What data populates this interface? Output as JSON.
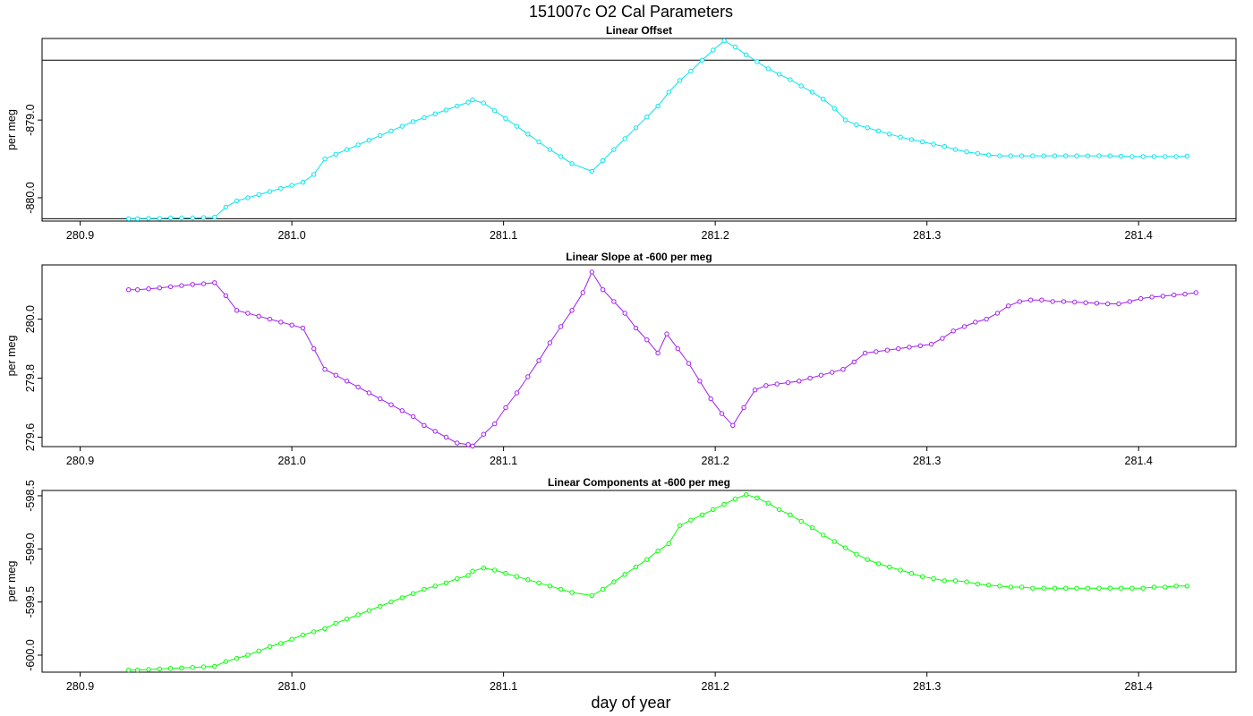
{
  "title": "151007c   O2 Cal Parameters",
  "xlabel": "day of year",
  "chart_data": [
    {
      "type": "line",
      "title": "Linear Offset",
      "ylabel": "per meg",
      "xlim": [
        280.882,
        281.446
      ],
      "ylim": [
        -880.3,
        -877.95
      ],
      "xticks": [
        280.9,
        281.0,
        281.1,
        281.2,
        281.3,
        281.4
      ],
      "yticks": [
        -879.0,
        -880.0
      ],
      "hlines": [
        -878.23,
        -880.27
      ],
      "color": "#00e5ee",
      "x": [
        280.9229,
        280.9271,
        280.9323,
        280.9375,
        280.9427,
        280.9479,
        280.9531,
        280.9583,
        280.9635,
        280.9688,
        280.974,
        280.9792,
        280.9844,
        280.9896,
        280.9948,
        281.0,
        281.0052,
        281.0104,
        281.0156,
        281.0208,
        281.026,
        281.0313,
        281.0365,
        281.0417,
        281.0469,
        281.0521,
        281.0573,
        281.0625,
        281.0677,
        281.0729,
        281.0781,
        281.0833,
        281.0854,
        281.0906,
        281.0958,
        281.101,
        281.1063,
        281.1115,
        281.1167,
        281.1219,
        281.1271,
        281.1323,
        281.1417,
        281.1469,
        281.1521,
        281.1573,
        281.1625,
        281.1677,
        281.1729,
        281.1781,
        281.1833,
        281.1885,
        281.1938,
        281.199,
        281.2042,
        281.2094,
        281.2146,
        281.2198,
        281.225,
        281.2302,
        281.2354,
        281.2406,
        281.2458,
        281.251,
        281.2563,
        281.2615,
        281.2667,
        281.2719,
        281.2771,
        281.2823,
        281.2875,
        281.2927,
        281.2979,
        281.3031,
        281.3083,
        281.3135,
        281.3188,
        281.324,
        281.3292,
        281.3344,
        281.3396,
        281.3448,
        281.35,
        281.3552,
        281.3604,
        281.3656,
        281.3708,
        281.376,
        281.3813,
        281.3865,
        281.3917,
        281.3969,
        281.4021,
        281.4073,
        281.4125,
        281.4177,
        281.4229
      ],
      "y": [
        -880.27,
        -880.27,
        -880.265,
        -880.265,
        -880.26,
        -880.26,
        -880.26,
        -880.255,
        -880.25,
        -880.12,
        -880.04,
        -880.0,
        -879.96,
        -879.92,
        -879.88,
        -879.84,
        -879.8,
        -879.7,
        -879.5,
        -879.44,
        -879.38,
        -879.32,
        -879.26,
        -879.2,
        -879.14,
        -879.08,
        -879.02,
        -878.97,
        -878.92,
        -878.87,
        -878.82,
        -878.77,
        -878.74,
        -878.78,
        -878.88,
        -878.98,
        -879.08,
        -879.18,
        -879.28,
        -879.38,
        -879.47,
        -879.56,
        -879.66,
        -879.52,
        -879.38,
        -879.24,
        -879.1,
        -878.96,
        -878.82,
        -878.64,
        -878.49,
        -878.37,
        -878.23,
        -878.1,
        -877.98,
        -878.06,
        -878.16,
        -878.25,
        -878.34,
        -878.41,
        -878.48,
        -878.56,
        -878.64,
        -878.73,
        -878.85,
        -879.0,
        -879.06,
        -879.1,
        -879.14,
        -879.18,
        -879.22,
        -879.25,
        -879.28,
        -879.31,
        -879.34,
        -879.38,
        -879.41,
        -879.43,
        -879.45,
        -879.46,
        -879.46,
        -879.46,
        -879.46,
        -879.46,
        -879.46,
        -879.46,
        -879.46,
        -879.46,
        -879.46,
        -879.46,
        -879.465,
        -879.47,
        -879.47,
        -879.47,
        -879.47,
        -879.47,
        -879.465
      ]
    },
    {
      "type": "line",
      "title": "Linear Slope at -600 per meg",
      "ylabel": "per meg",
      "xlim": [
        280.882,
        281.446
      ],
      "ylim": [
        279.568,
        280.184
      ],
      "xticks": [
        280.9,
        281.0,
        281.1,
        281.2,
        281.3,
        281.4
      ],
      "yticks": [
        279.6,
        279.8,
        280.0
      ],
      "hlines": [],
      "color": "#a020f0",
      "x": [
        280.9229,
        280.9271,
        280.9323,
        280.9375,
        280.9427,
        280.9479,
        280.9531,
        280.9583,
        280.9635,
        280.9688,
        280.974,
        280.9792,
        280.9844,
        280.9896,
        280.9948,
        281.0,
        281.0052,
        281.0104,
        281.0156,
        281.0208,
        281.026,
        281.0313,
        281.0365,
        281.0417,
        281.0469,
        281.0521,
        281.0573,
        281.0625,
        281.0677,
        281.0729,
        281.0781,
        281.0833,
        281.0854,
        281.0906,
        281.0958,
        281.101,
        281.1063,
        281.1115,
        281.1167,
        281.1219,
        281.1271,
        281.1323,
        281.1375,
        281.1417,
        281.1469,
        281.1521,
        281.1573,
        281.1625,
        281.1677,
        281.1729,
        281.1771,
        281.1823,
        281.1875,
        281.1927,
        281.1979,
        281.2031,
        281.2083,
        281.2135,
        281.2188,
        281.224,
        281.2292,
        281.2344,
        281.2396,
        281.2448,
        281.25,
        281.2552,
        281.2604,
        281.2656,
        281.2708,
        281.276,
        281.2813,
        281.2865,
        281.2917,
        281.2969,
        281.3021,
        281.3073,
        281.3125,
        281.3177,
        281.3229,
        281.3281,
        281.3333,
        281.3385,
        281.3438,
        281.349,
        281.3542,
        281.3594,
        281.3646,
        281.3698,
        281.375,
        281.3802,
        281.3854,
        281.3906,
        281.3958,
        281.401,
        281.4063,
        281.4115,
        281.4167,
        281.4219,
        281.4271
      ],
      "y": [
        280.1,
        280.1,
        280.103,
        280.106,
        280.11,
        280.114,
        280.118,
        280.12,
        280.124,
        280.08,
        280.03,
        280.02,
        280.01,
        280.0,
        279.99,
        279.98,
        279.97,
        279.9,
        279.83,
        279.81,
        279.79,
        279.77,
        279.75,
        279.73,
        279.71,
        279.69,
        279.67,
        279.64,
        279.62,
        279.6,
        279.58,
        279.575,
        279.57,
        279.61,
        279.645,
        279.7,
        279.75,
        279.805,
        279.86,
        279.92,
        279.975,
        280.03,
        280.09,
        280.16,
        280.1,
        280.06,
        280.02,
        279.97,
        279.93,
        279.885,
        279.95,
        279.9,
        279.85,
        279.79,
        279.73,
        279.68,
        279.64,
        279.7,
        279.76,
        279.775,
        279.78,
        279.785,
        279.79,
        279.8,
        279.81,
        279.82,
        279.83,
        279.855,
        279.885,
        279.89,
        279.895,
        279.9,
        279.905,
        279.91,
        279.915,
        279.935,
        279.96,
        279.975,
        279.99,
        280.0,
        280.02,
        280.045,
        280.06,
        280.065,
        280.065,
        280.06,
        280.06,
        280.058,
        280.056,
        280.054,
        280.052,
        280.052,
        280.06,
        280.07,
        280.075,
        280.078,
        280.082,
        280.085,
        280.09
      ]
    },
    {
      "type": "line",
      "title": "Linear Components at -600 per meg",
      "ylabel": "per meg",
      "xlim": [
        280.882,
        281.446
      ],
      "ylim": [
        -600.16,
        -598.45
      ],
      "xticks": [
        280.9,
        281.0,
        281.1,
        281.2,
        281.3,
        281.4
      ],
      "yticks": [
        -600.0,
        -599.5,
        -599.0,
        -598.5
      ],
      "hlines": [],
      "color": "#00ff00",
      "x": [
        280.9229,
        280.9271,
        280.9323,
        280.9375,
        280.9427,
        280.9479,
        280.9531,
        280.9583,
        280.9635,
        280.9688,
        280.974,
        280.9792,
        280.9844,
        280.9896,
        280.9948,
        281.0,
        281.0052,
        281.0104,
        281.0156,
        281.0208,
        281.026,
        281.0313,
        281.0365,
        281.0417,
        281.0469,
        281.0521,
        281.0573,
        281.0625,
        281.0677,
        281.0729,
        281.0781,
        281.0833,
        281.0854,
        281.0906,
        281.0958,
        281.101,
        281.1063,
        281.1115,
        281.1167,
        281.1219,
        281.1271,
        281.1323,
        281.1417,
        281.1469,
        281.1521,
        281.1573,
        281.1625,
        281.1677,
        281.1729,
        281.1781,
        281.1833,
        281.1885,
        281.1938,
        281.199,
        281.2042,
        281.2094,
        281.2146,
        281.2198,
        281.225,
        281.2302,
        281.2354,
        281.2406,
        281.2458,
        281.251,
        281.2563,
        281.2615,
        281.2667,
        281.2719,
        281.2771,
        281.2823,
        281.2875,
        281.2927,
        281.2979,
        281.3031,
        281.3083,
        281.3135,
        281.3188,
        281.324,
        281.3292,
        281.3344,
        281.3396,
        281.3448,
        281.35,
        281.3552,
        281.3604,
        281.3656,
        281.3708,
        281.376,
        281.3813,
        281.3865,
        281.3917,
        281.3969,
        281.4021,
        281.4073,
        281.4125,
        281.4177,
        281.4229
      ],
      "y": [
        -600.14,
        -600.14,
        -600.135,
        -600.13,
        -600.125,
        -600.12,
        -600.115,
        -600.11,
        -600.105,
        -600.06,
        -600.03,
        -600.0,
        -599.96,
        -599.92,
        -599.89,
        -599.85,
        -599.81,
        -599.78,
        -599.75,
        -599.7,
        -599.66,
        -599.62,
        -599.58,
        -599.54,
        -599.5,
        -599.46,
        -599.42,
        -599.38,
        -599.35,
        -599.32,
        -599.28,
        -599.25,
        -599.21,
        -599.18,
        -599.2,
        -599.23,
        -599.26,
        -599.29,
        -599.32,
        -599.35,
        -599.38,
        -599.41,
        -599.44,
        -599.38,
        -599.31,
        -599.24,
        -599.17,
        -599.1,
        -599.02,
        -598.95,
        -598.78,
        -598.73,
        -598.68,
        -598.63,
        -598.58,
        -598.53,
        -598.49,
        -598.52,
        -598.57,
        -598.63,
        -598.68,
        -598.74,
        -598.8,
        -598.87,
        -598.93,
        -598.99,
        -599.05,
        -599.1,
        -599.14,
        -599.17,
        -599.2,
        -599.23,
        -599.26,
        -599.28,
        -599.3,
        -599.3,
        -599.31,
        -599.33,
        -599.34,
        -599.35,
        -599.36,
        -599.36,
        -599.37,
        -599.37,
        -599.37,
        -599.37,
        -599.37,
        -599.37,
        -599.37,
        -599.37,
        -599.37,
        -599.37,
        -599.37,
        -599.36,
        -599.36,
        -599.35,
        -599.35
      ]
    }
  ]
}
